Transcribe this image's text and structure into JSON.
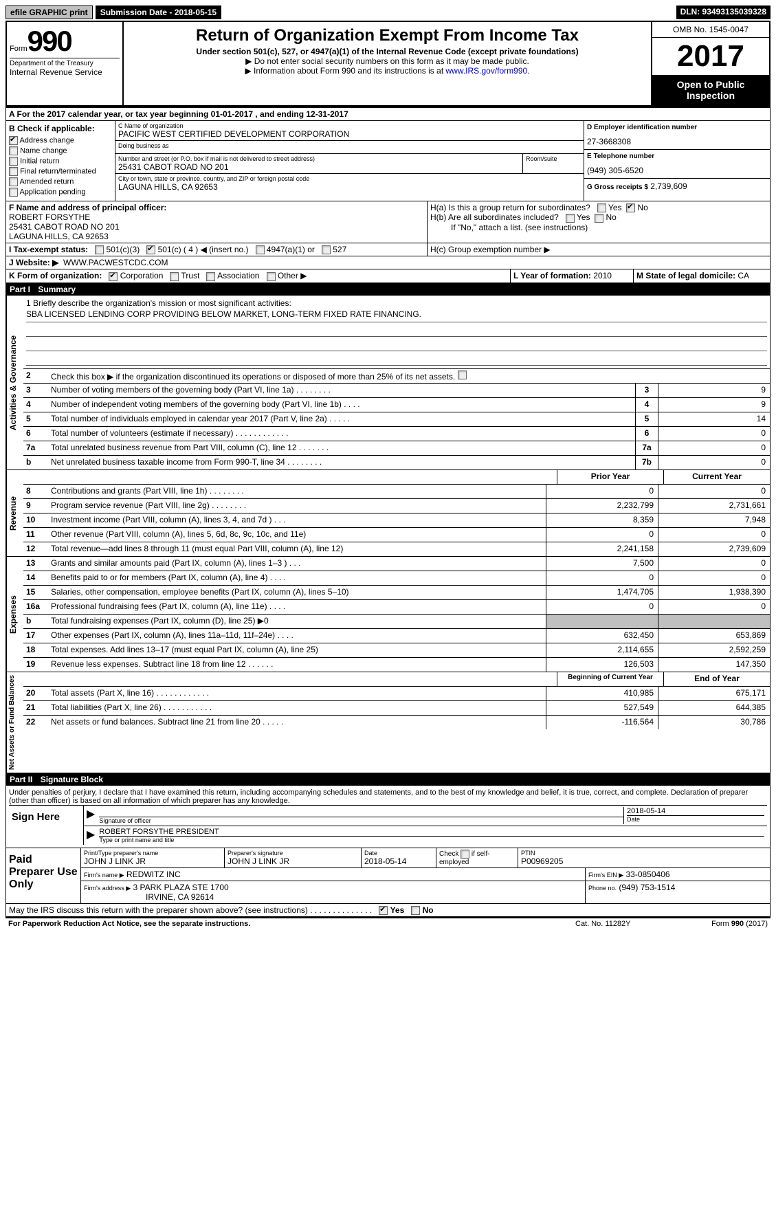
{
  "top": {
    "efile": "efile GRAPHIC print",
    "submission": "Submission Date - 2018-05-15",
    "dln": "DLN: 93493135039328"
  },
  "header": {
    "form_label": "Form",
    "form_number": "990",
    "dept_treasury": "Department of the Treasury",
    "irs": "Internal Revenue Service",
    "title": "Return of Organization Exempt From Income Tax",
    "subtitle": "Under section 501(c), 527, or 4947(a)(1) of the Internal Revenue Code (except private foundations)",
    "note1": "▶ Do not enter social security numbers on this form as it may be made public.",
    "note2": "▶ Information about Form 990 and its instructions is at ",
    "note2_link": "www.IRS.gov/form990",
    "omb": "OMB No. 1545-0047",
    "year": "2017",
    "open": "Open to Public Inspection"
  },
  "section_a": "A  For the 2017 calendar year, or tax year beginning 01-01-2017   , and ending 12-31-2017",
  "col_b": {
    "header": "B Check if applicable:",
    "items": [
      "Address change",
      "Name change",
      "Initial return",
      "Final return/terminated",
      "Amended return",
      "Application pending"
    ],
    "checked": [
      true,
      false,
      false,
      false,
      false,
      false
    ]
  },
  "col_c": {
    "name_label": "C Name of organization",
    "org_name": "PACIFIC WEST CERTIFIED DEVELOPMENT CORPORATION",
    "dba_label": "Doing business as",
    "dba": "",
    "addr_label": "Number and street (or P.O. box if mail is not delivered to street address)",
    "room_label": "Room/suite",
    "street": "25431 CABOT ROAD NO 201",
    "city_label": "City or town, state or province, country, and ZIP or foreign postal code",
    "city": "LAGUNA HILLS, CA  92653"
  },
  "col_d": {
    "ein_label": "D Employer identification number",
    "ein": "27-3668308",
    "phone_label": "E Telephone number",
    "phone": "(949) 305-6520",
    "gross_label": "G Gross receipts $",
    "gross": "2,739,609"
  },
  "officer": {
    "label": "F  Name and address of principal officer:",
    "name": "ROBERT FORSYTHE",
    "addr1": "25431 CABOT ROAD NO 201",
    "addr2": "LAGUNA HILLS, CA  92653",
    "ha": "H(a)  Is this a group return for subordinates?",
    "hb": "H(b)  Are all subordinates included?",
    "hb_note": "If \"No,\" attach a list. (see instructions)",
    "hc": "H(c)  Group exemption number ▶"
  },
  "tax_status": {
    "label": "I  Tax-exempt status:",
    "opt1": "501(c)(3)",
    "opt2": "501(c) ( 4 ) ◀ (insert no.)",
    "opt3": "4947(a)(1) or",
    "opt4": "527"
  },
  "website": {
    "label": "J  Website: ▶",
    "url": "WWW.PACWESTCDC.COM"
  },
  "form_org": {
    "label": "K Form of organization:",
    "opts": [
      "Corporation",
      "Trust",
      "Association",
      "Other ▶"
    ],
    "year_label": "L Year of formation:",
    "year": "2010",
    "state_label": "M State of legal domicile:",
    "state": "CA"
  },
  "part1": {
    "header": "Part I",
    "title": "Summary",
    "mission_label": "1 Briefly describe the organization's mission or most significant activities:",
    "mission": "SBA LICENSED LENDING CORP PROVIDING BELOW MARKET, LONG-TERM FIXED RATE FINANCING.",
    "item2": "Check this box ▶        if the organization discontinued its operations or disposed of more than 25% of its net assets."
  },
  "gov_rows": [
    {
      "n": "3",
      "d": "Number of voting members of the governing body (Part VI, line 1a)   .   .   .   .   .   .   .   .",
      "l": "3",
      "v": "9"
    },
    {
      "n": "4",
      "d": "Number of independent voting members of the governing body (Part VI, line 1b)   .   .   .   .",
      "l": "4",
      "v": "9"
    },
    {
      "n": "5",
      "d": "Total number of individuals employed in calendar year 2017 (Part V, line 2a)   .   .   .   .   .",
      "l": "5",
      "v": "14"
    },
    {
      "n": "6",
      "d": "Total number of volunteers (estimate if necessary)   .   .   .   .   .   .   .   .   .   .   .   .",
      "l": "6",
      "v": "0"
    },
    {
      "n": "7a",
      "d": "Total unrelated business revenue from Part VIII, column (C), line 12   .   .   .   .   .   .   .",
      "l": "7a",
      "v": "0"
    },
    {
      "n": "b",
      "d": "Net unrelated business taxable income from Form 990-T, line 34    .   .   .   .   .   .   .   .",
      "l": "7b",
      "v": "0"
    }
  ],
  "rev_header": {
    "py": "Prior Year",
    "cy": "Current Year"
  },
  "rev_rows": [
    {
      "n": "8",
      "d": "Contributions and grants (Part VIII, line 1h)   .   .   .   .   .   .   .   .",
      "py": "0",
      "cy": "0"
    },
    {
      "n": "9",
      "d": "Program service revenue (Part VIII, line 2g)   .   .   .   .   .   .   .   .",
      "py": "2,232,799",
      "cy": "2,731,661"
    },
    {
      "n": "10",
      "d": "Investment income (Part VIII, column (A), lines 3, 4, and 7d )   .   .   .",
      "py": "8,359",
      "cy": "7,948"
    },
    {
      "n": "11",
      "d": "Other revenue (Part VIII, column (A), lines 5, 6d, 8c, 9c, 10c, and 11e)",
      "py": "0",
      "cy": "0"
    },
    {
      "n": "12",
      "d": "Total revenue—add lines 8 through 11 (must equal Part VIII, column (A), line 12)",
      "py": "2,241,158",
      "cy": "2,739,609"
    }
  ],
  "exp_rows": [
    {
      "n": "13",
      "d": "Grants and similar amounts paid (Part IX, column (A), lines 1–3 )   .   .   .",
      "py": "7,500",
      "cy": "0"
    },
    {
      "n": "14",
      "d": "Benefits paid to or for members (Part IX, column (A), line 4)   .   .   .   .",
      "py": "0",
      "cy": "0"
    },
    {
      "n": "15",
      "d": "Salaries, other compensation, employee benefits (Part IX, column (A), lines 5–10)",
      "py": "1,474,705",
      "cy": "1,938,390"
    },
    {
      "n": "16a",
      "d": "Professional fundraising fees (Part IX, column (A), line 11e)   .   .   .   .",
      "py": "0",
      "cy": "0"
    },
    {
      "n": "b",
      "d": "Total fundraising expenses (Part IX, column (D), line 25) ▶0",
      "py": "GRAY",
      "cy": "GRAY"
    },
    {
      "n": "17",
      "d": "Other expenses (Part IX, column (A), lines 11a–11d, 11f–24e)   .   .   .   .",
      "py": "632,450",
      "cy": "653,869"
    },
    {
      "n": "18",
      "d": "Total expenses. Add lines 13–17 (must equal Part IX, column (A), line 25)",
      "py": "2,114,655",
      "cy": "2,592,259"
    },
    {
      "n": "19",
      "d": "Revenue less expenses. Subtract line 18 from line 12   .   .   .   .   .   .",
      "py": "126,503",
      "cy": "147,350"
    }
  ],
  "net_header": {
    "py": "Beginning of Current Year",
    "cy": "End of Year"
  },
  "net_rows": [
    {
      "n": "20",
      "d": "Total assets (Part X, line 16)   .   .   .   .   .   .   .   .   .   .   .   .",
      "py": "410,985",
      "cy": "675,171"
    },
    {
      "n": "21",
      "d": "Total liabilities (Part X, line 26)   .   .   .   .   .   .   .   .   .   .   .",
      "py": "527,549",
      "cy": "644,385"
    },
    {
      "n": "22",
      "d": "Net assets or fund balances. Subtract line 21 from line 20 .   .   .   .   .",
      "py": "-116,564",
      "cy": "30,786"
    }
  ],
  "part2": {
    "header": "Part II",
    "title": "Signature Block",
    "declaration": "Under penalties of perjury, I declare that I have examined this return, including accompanying schedules and statements, and to the best of my knowledge and belief, it is true, correct, and complete. Declaration of preparer (other than officer) is based on all information of which preparer has any knowledge.",
    "sign_here": "Sign Here",
    "sig_officer": "Signature of officer",
    "date": "Date",
    "date_val": "2018-05-14",
    "name_title": "ROBERT FORSYTHE PRESIDENT",
    "name_title_label": "Type or print name and title"
  },
  "paid_prep": {
    "label": "Paid Preparer Use Only",
    "prep_name_label": "Print/Type preparer's name",
    "prep_name": "JOHN J LINK JR",
    "prep_sig_label": "Preparer's signature",
    "prep_sig": "JOHN J LINK JR",
    "date_label": "Date",
    "date": "2018-05-14",
    "check_label": "Check         if self-employed",
    "ptin_label": "PTIN",
    "ptin": "P00969205",
    "firm_name_label": "Firm's name      ▶",
    "firm_name": "REDWITZ INC",
    "firm_ein_label": "Firm's EIN ▶",
    "firm_ein": "33-0850406",
    "firm_addr_label": "Firm's address ▶",
    "firm_addr": "3 PARK PLAZA STE 1700",
    "firm_city": "IRVINE, CA  92614",
    "phone_label": "Phone no.",
    "phone": "(949) 753-1514"
  },
  "discuss": "May the IRS discuss this return with the preparer shown above? (see instructions)   .   .   .   .   .   .   .   .   .   .   .   .   .   .",
  "footer": {
    "paperwork": "For Paperwork Reduction Act Notice, see the separate instructions.",
    "cat": "Cat. No. 11282Y",
    "form": "Form 990 (2017)"
  },
  "vert_labels": {
    "gov": "Activities & Governance",
    "rev": "Revenue",
    "exp": "Expenses",
    "net": "Net Assets or Fund Balances"
  }
}
